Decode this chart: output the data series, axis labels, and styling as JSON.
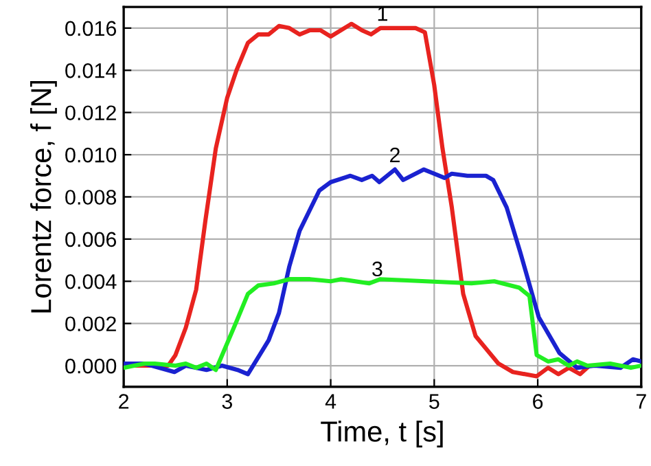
{
  "chart_data": {
    "type": "line",
    "xlabel": "Time, t [s]",
    "ylabel": "Lorentz force, f [N]",
    "xlim": [
      2,
      7
    ],
    "xticks": [
      2,
      3,
      4,
      5,
      6,
      7
    ],
    "ylim": [
      -0.001,
      0.017
    ],
    "yticks": [
      {
        "value": 0,
        "label": "0.000"
      },
      {
        "value": 0.002,
        "label": "0.002"
      },
      {
        "value": 0.004,
        "label": "0.004"
      },
      {
        "value": 0.006,
        "label": "0.006"
      },
      {
        "value": 0.008,
        "label": "0.008"
      },
      {
        "value": 0.01,
        "label": "0.010"
      },
      {
        "value": 0.012,
        "label": "0.012"
      },
      {
        "value": 0.014,
        "label": "0.014"
      },
      {
        "value": 0.016,
        "label": "0.016"
      }
    ],
    "grid": true,
    "legend": false,
    "marker": "none",
    "line_style": "solid",
    "series": [
      {
        "color": "#e8231f",
        "x": [
          2,
          2.2,
          2.43,
          2.5,
          2.6,
          2.7,
          2.79,
          2.89,
          3.0,
          3.09,
          3.2,
          3.3,
          3.4,
          3.5,
          3.6,
          3.7,
          3.8,
          3.9,
          4.0,
          4.1,
          4.2,
          4.3,
          4.39,
          4.48,
          4.82,
          4.91,
          5.0,
          5.08,
          5.17,
          5.28,
          5.4,
          5.62,
          5.76,
          5.99,
          6.1,
          6.2,
          6.3,
          6.41,
          6.5,
          6.7
        ],
        "values": [
          0,
          0,
          0,
          0.0005,
          0.0018,
          0.0036,
          0.0069,
          0.0103,
          0.0127,
          0.014,
          0.0153,
          0.0157,
          0.0157,
          0.0161,
          0.016,
          0.0157,
          0.0159,
          0.0159,
          0.0156,
          0.0159,
          0.0162,
          0.0159,
          0.0157,
          0.016,
          0.016,
          0.0158,
          0.0133,
          0.0103,
          0.0075,
          0.0034,
          0.0014,
          0.0001,
          -0.0003,
          -0.0005,
          -0.0001,
          -0.0004,
          -0.0001,
          -0.0004,
          0,
          0
        ]
      },
      {
        "color": "#1a22d0",
        "x": [
          2,
          2.2,
          2.49,
          2.6,
          2.8,
          2.95,
          3.1,
          3.2,
          3.4,
          3.5,
          3.6,
          3.7,
          3.89,
          4.0,
          4.19,
          4.3,
          4.4,
          4.47,
          4.62,
          4.7,
          4.9,
          5.1,
          5.17,
          5.32,
          5.5,
          5.57,
          5.7,
          5.83,
          6.01,
          6.21,
          6.38,
          6.55,
          6.8,
          6.92,
          7.0
        ],
        "values": [
          0.0001,
          0.0001,
          -0.0003,
          0,
          -0.0002,
          0,
          -0.0002,
          -0.0004,
          0.0012,
          0.0025,
          0.0047,
          0.0064,
          0.0083,
          0.0087,
          0.009,
          0.0088,
          0.009,
          0.0087,
          0.0093,
          0.0088,
          0.0093,
          0.0089,
          0.0091,
          0.009,
          0.009,
          0.0088,
          0.0075,
          0.0054,
          0.0023,
          0.0006,
          -0.0001,
          0,
          -0.0001,
          0.0003,
          0.0002
        ]
      },
      {
        "color": "#22ee22",
        "x": [
          2,
          2.2,
          2.3,
          2.5,
          2.6,
          2.7,
          2.8,
          2.89,
          3.09,
          3.2,
          3.3,
          3.45,
          3.6,
          3.8,
          4.0,
          4.1,
          4.37,
          4.48,
          4.92,
          5.36,
          5.58,
          5.82,
          5.92,
          5.99,
          6.1,
          6.2,
          6.3,
          6.38,
          6.48,
          6.7,
          6.9,
          7.0
        ],
        "values": [
          -0.0001,
          0.0001,
          0.0001,
          0,
          0.0001,
          -0.0001,
          0.0001,
          -0.0002,
          0.0021,
          0.0034,
          0.0038,
          0.0039,
          0.0041,
          0.0041,
          0.004,
          0.0041,
          0.0039,
          0.0041,
          0.004,
          0.0039,
          0.004,
          0.0037,
          0.0033,
          0.0005,
          0.0002,
          0.0003,
          0,
          0.0002,
          0,
          0.0001,
          -0.0001,
          0
        ]
      }
    ],
    "annotations": [
      {
        "text": "1",
        "x": 4.5,
        "y": 0.016
      },
      {
        "text": "2",
        "x": 4.62,
        "y": 0.0093
      },
      {
        "text": "3",
        "x": 4.45,
        "y": 0.0039
      }
    ]
  }
}
